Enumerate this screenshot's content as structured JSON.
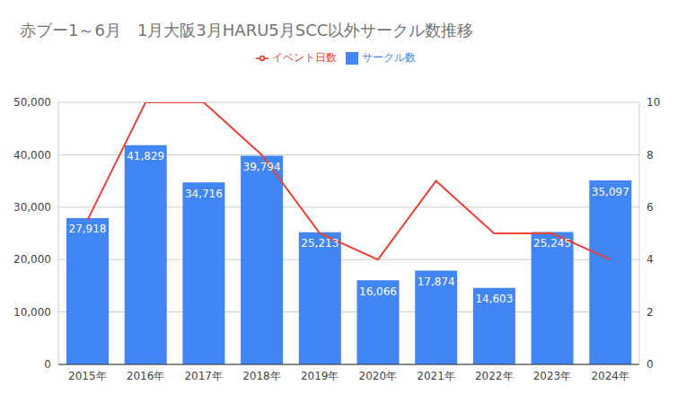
{
  "chart_data": {
    "type": "bar",
    "title": "赤ブー1～6月　1月大阪3月HARU5月SCC以外サークル数推移",
    "categories": [
      "2015年",
      "2016年",
      "2017年",
      "2018年",
      "2019年",
      "2020年",
      "2021年",
      "2022年",
      "2023年",
      "2024年"
    ],
    "series": [
      {
        "name": "サークル数",
        "type": "bar",
        "color": "#4285f4",
        "values": [
          27918,
          41829,
          34716,
          39794,
          25213,
          16066,
          17874,
          14603,
          25245,
          35097
        ],
        "value_labels": [
          "27,918",
          "41,829",
          "34,716",
          "39,794",
          "25,213",
          "16,066",
          "17,874",
          "14,603",
          "25,245",
          "35,097"
        ]
      },
      {
        "name": "イベント日数",
        "type": "line",
        "axis": "y2",
        "color": "#ea4335",
        "values": [
          5.5,
          10,
          10,
          8,
          5,
          4,
          7,
          5,
          5,
          4
        ]
      }
    ],
    "ylim": [
      0,
      50000
    ],
    "yticks": [
      0,
      {
        "value": 10000,
        "label": "10,000"
      },
      {
        "value": 20000,
        "label": "20,000"
      },
      {
        "value": 30000,
        "label": "30,000"
      },
      {
        "value": 40000,
        "label": "40,000"
      },
      {
        "value": 50000,
        "label": "50,000"
      }
    ],
    "y2lim": [
      0,
      10
    ],
    "y2ticks": [
      0,
      2,
      4,
      6,
      8,
      10
    ],
    "grid": true,
    "legend": "top",
    "data_labels": true
  }
}
